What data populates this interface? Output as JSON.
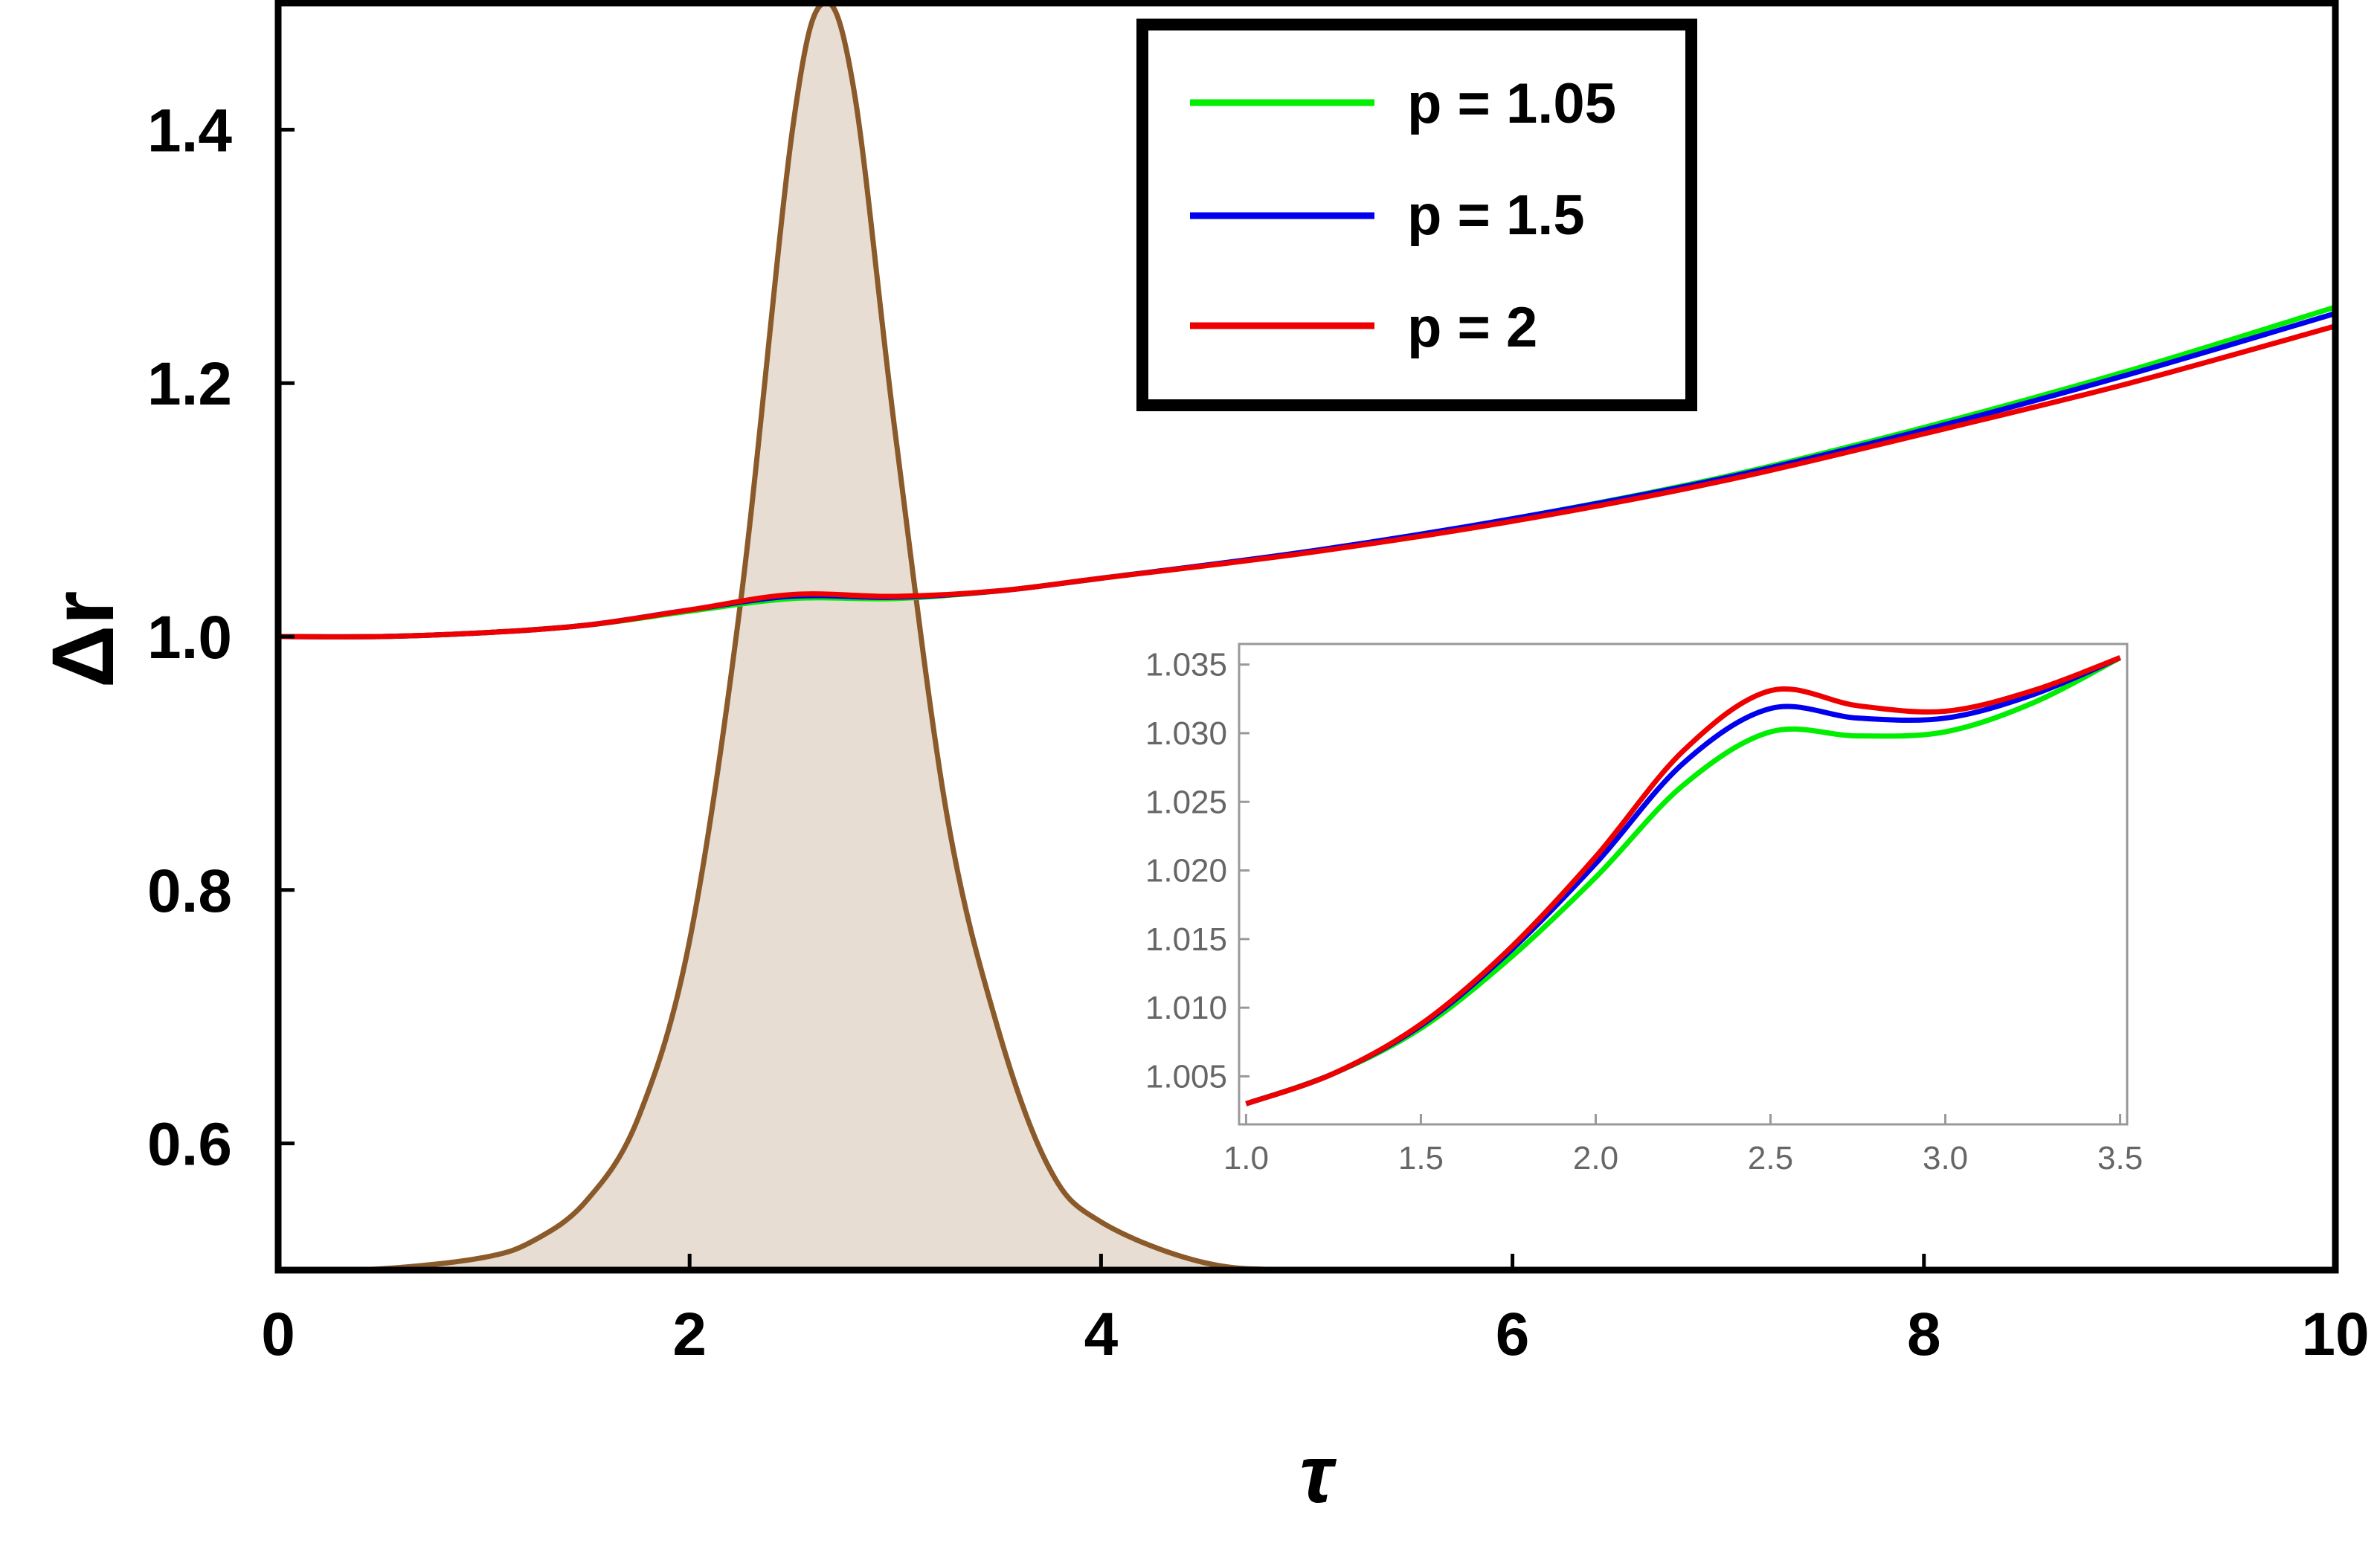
{
  "chart_data": [
    {
      "type": "line",
      "title": "",
      "xlabel": "τ",
      "ylabel": "Δr",
      "xlim": [
        0,
        10
      ],
      "ylim": [
        0.5,
        1.5
      ],
      "x_ticks": [
        "0",
        "2",
        "4",
        "6",
        "8",
        "10"
      ],
      "y_ticks": [
        "0.6",
        "0.8",
        "1.0",
        "1.2",
        "1.4"
      ],
      "grid": false,
      "legend": {
        "placement": "top-center",
        "entries": [
          "p = 1.05",
          "p = 1.5",
          "p = 2"
        ]
      },
      "series": [
        {
          "name": "p = 1.05",
          "color": "#00ee00",
          "x": [
            0,
            0.5,
            1.0,
            1.5,
            2.0,
            2.5,
            3.0,
            3.5,
            4.0,
            5.0,
            6.0,
            7.0,
            8.0,
            9.0,
            10.0
          ],
          "y": [
            1.0,
            1.0,
            1.003,
            1.009,
            1.02,
            1.03,
            1.03,
            1.036,
            1.046,
            1.067,
            1.093,
            1.125,
            1.165,
            1.21,
            1.26
          ]
        },
        {
          "name": "p = 1.5",
          "color": "#0000ee",
          "x": [
            0,
            0.5,
            1.0,
            1.5,
            2.0,
            2.5,
            3.0,
            3.5,
            4.0,
            5.0,
            6.0,
            7.0,
            8.0,
            9.0,
            10.0
          ],
          "y": [
            1.0,
            1.0,
            1.003,
            1.009,
            1.021,
            1.0318,
            1.031,
            1.036,
            1.046,
            1.067,
            1.093,
            1.124,
            1.163,
            1.207,
            1.255
          ]
        },
        {
          "name": "p = 2",
          "color": "#ee0000",
          "x": [
            0,
            0.5,
            1.0,
            1.5,
            2.0,
            2.5,
            3.0,
            3.5,
            4.0,
            5.0,
            6.0,
            7.0,
            8.0,
            9.0,
            10.0
          ],
          "y": [
            1.0,
            1.0,
            1.003,
            1.009,
            1.021,
            1.0332,
            1.0317,
            1.036,
            1.046,
            1.066,
            1.091,
            1.122,
            1.16,
            1.2,
            1.245
          ]
        },
        {
          "name": "",
          "type": "area",
          "color": "#8b5a2b",
          "fill": "#e8ddd2",
          "x": [
            0,
            0.5,
            1.0,
            1.25,
            1.5,
            1.75,
            2.0,
            2.25,
            2.5,
            2.65,
            2.8,
            3.0,
            3.25,
            3.5,
            3.75,
            4.0,
            4.5,
            5.0,
            6.0,
            10.0
          ],
          "y": [
            0.5,
            0.501,
            0.51,
            0.524,
            0.555,
            0.62,
            0.76,
            1.03,
            1.4,
            1.5,
            1.43,
            1.16,
            0.86,
            0.69,
            0.58,
            0.538,
            0.506,
            0.5,
            0.5,
            0.5
          ]
        }
      ]
    },
    {
      "type": "line",
      "title": "",
      "xlabel": "",
      "ylabel": "",
      "xlim": [
        0.98,
        3.52
      ],
      "ylim": [
        1.0015,
        1.0365
      ],
      "x_ticks": [
        "1.0",
        "1.5",
        "2.0",
        "2.5",
        "3.0",
        "3.5"
      ],
      "y_ticks": [
        "1.005",
        "1.010",
        "1.015",
        "1.020",
        "1.025",
        "1.030",
        "1.035"
      ],
      "grid": false,
      "series": [
        {
          "color": "#00ee00",
          "x": [
            1.0,
            1.25,
            1.5,
            1.75,
            2.0,
            2.25,
            2.5,
            2.75,
            3.0,
            3.25,
            3.5
          ],
          "y": [
            1.003,
            1.0052,
            1.0085,
            1.0135,
            1.0195,
            1.0262,
            1.0301,
            1.0298,
            1.0301,
            1.0322,
            1.0355
          ]
        },
        {
          "color": "#0000ee",
          "x": [
            1.0,
            1.25,
            1.5,
            1.75,
            2.0,
            2.25,
            2.5,
            2.75,
            3.0,
            3.25,
            3.5
          ],
          "y": [
            1.003,
            1.0052,
            1.0087,
            1.014,
            1.0205,
            1.0278,
            1.0318,
            1.0311,
            1.0311,
            1.0328,
            1.0355
          ]
        },
        {
          "color": "#ee0000",
          "x": [
            1.0,
            1.25,
            1.5,
            1.75,
            2.0,
            2.25,
            2.5,
            2.75,
            3.0,
            3.25,
            3.5
          ],
          "y": [
            1.003,
            1.0052,
            1.0088,
            1.0142,
            1.021,
            1.0287,
            1.0331,
            1.032,
            1.0316,
            1.0331,
            1.0355
          ]
        }
      ]
    }
  ]
}
